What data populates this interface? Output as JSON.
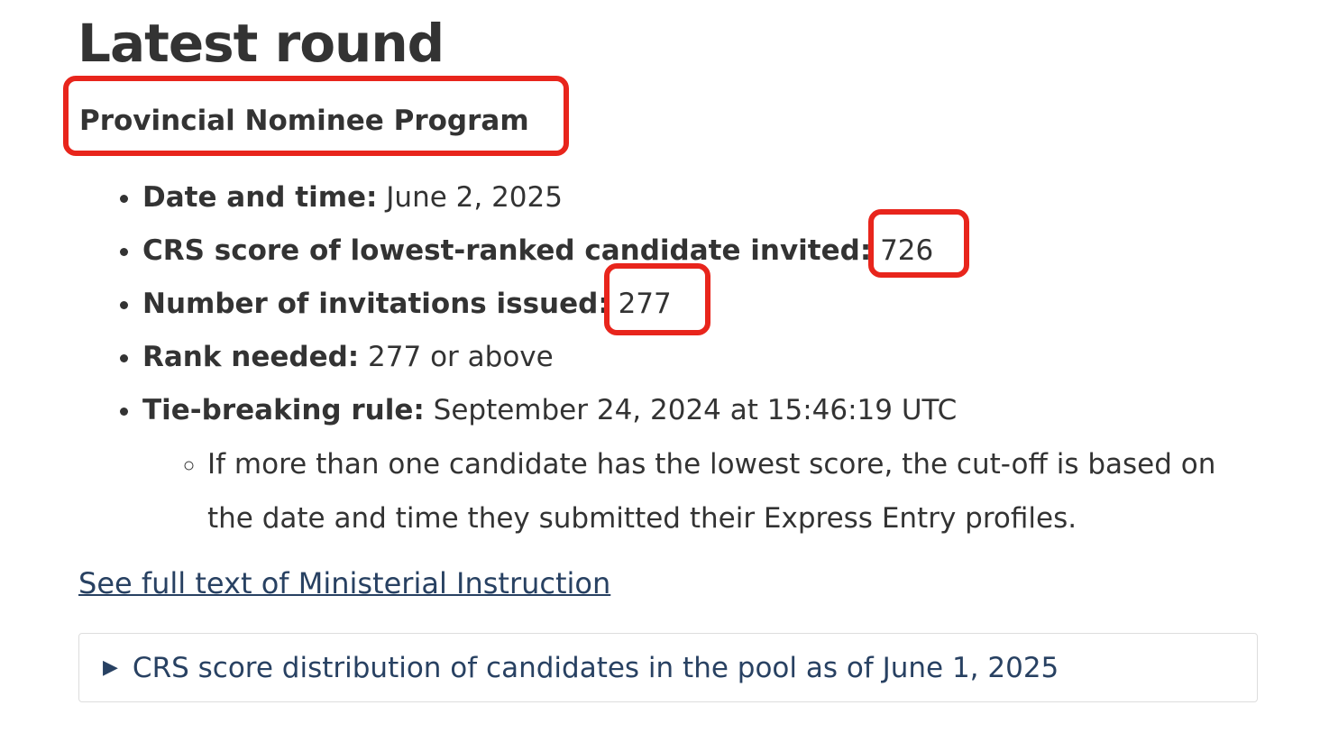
{
  "title": "Latest round",
  "program": "Provincial Nominee Program",
  "details": [
    {
      "label": "Date and time:",
      "value": " June 2, 2025"
    },
    {
      "label": "CRS score of lowest-ranked candidate invited:",
      "value": " 726"
    },
    {
      "label": "Number of invitations issued:",
      "value": " 277"
    },
    {
      "label": "Rank needed:",
      "value": " 277 or above"
    },
    {
      "label": "Tie-breaking rule:",
      "value": " September 24, 2024 at 15:46:19 UTC"
    }
  ],
  "tie_note": "If more than one candidate has the lowest score, the cut-off is based on the date and time they submitted their Express Entry profiles.",
  "link_text": "See full text of Ministerial Instruction",
  "distribution_summary": "CRS score distribution of candidates in the pool as of June 1, 2025",
  "colors": {
    "link": "#284162",
    "annotation": "#e8251c",
    "text": "#333333"
  }
}
